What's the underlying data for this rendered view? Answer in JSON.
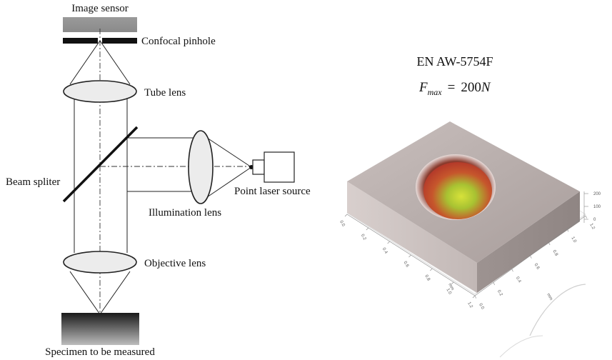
{
  "diagram": {
    "labels": {
      "image_sensor": "Image sensor",
      "confocal_pinhole": "Confocal pinhole",
      "tube_lens": "Tube lens",
      "beam_splitter": "Beam spliter",
      "illumination_lens": "Illumination lens",
      "point_laser_source": "Point laser source",
      "objective_lens": "Objective lens",
      "specimen": "Specimen to be measured"
    }
  },
  "scan": {
    "title": "EN AW-5754F",
    "force": {
      "symbol": "F",
      "subscript": "max",
      "equals": "=",
      "value": "200",
      "unit": "N"
    },
    "axis_x_ticks": [
      "0.0",
      "0.2",
      "0.4",
      "0.6",
      "0.8",
      "1.0",
      "1.2"
    ],
    "axis_x_unit": "mm",
    "axis_y_ticks": [
      "0.0",
      "0.2",
      "0.4",
      "0.6",
      "0.8",
      "1.0",
      "1.2"
    ],
    "axis_y_unit": "mm",
    "axis_z_ticks": [
      "200",
      "100",
      "0"
    ],
    "colors": {
      "surface": "#b4aaa8",
      "crater_outer": "#c8402a",
      "crater_inner": "#d7e23a"
    }
  }
}
